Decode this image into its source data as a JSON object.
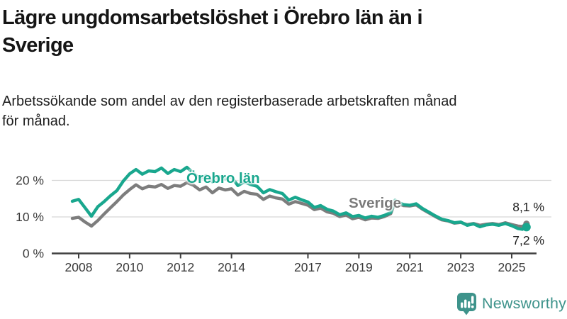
{
  "header": {
    "title": "Lägre ungdomsarbetslöshet i Örebro län än i Sverige",
    "title_lines": [
      "Lägre ungdomsarbetslöshet i Örebro län än i",
      "Sverige"
    ],
    "subtitle": "Arbetssökande som andel av den registerbaserade arbetskraften månad för månad.",
    "subtitle_lines": [
      "Arbetssökande som andel av den registerbaserade arbetskraften månad",
      "för månad."
    ]
  },
  "chart_data": {
    "type": "line",
    "title": "Lägre ungdomsarbetslöshet i Örebro län än i Sverige",
    "xlabel": "",
    "ylabel": "",
    "unit": "%",
    "xlim": [
      2007.7,
      2025.9
    ],
    "ylim": [
      0,
      24
    ],
    "grid": "horizontal",
    "y_ticks": [
      {
        "value": 0,
        "label": "0 %",
        "gridline": false
      },
      {
        "value": 10,
        "label": "10 %",
        "gridline": true
      },
      {
        "value": 20,
        "label": "20 %",
        "gridline": true
      }
    ],
    "x_ticks": [
      {
        "value": 2008,
        "label": "2008"
      },
      {
        "value": 2010,
        "label": "2010"
      },
      {
        "value": 2012,
        "label": "2012"
      },
      {
        "value": 2014,
        "label": "2014"
      },
      {
        "value": 2017,
        "label": "2017"
      },
      {
        "value": 2019,
        "label": "2019"
      },
      {
        "value": 2021,
        "label": "2021"
      },
      {
        "value": 2023,
        "label": "2023"
      },
      {
        "value": 2025,
        "label": "2025"
      }
    ],
    "x": [
      2007.75,
      2008.0,
      2008.25,
      2008.5,
      2008.75,
      2009.0,
      2009.25,
      2009.5,
      2009.75,
      2010.0,
      2010.25,
      2010.5,
      2010.75,
      2011.0,
      2011.25,
      2011.5,
      2011.75,
      2012.0,
      2012.25,
      2012.5,
      2012.75,
      2013.0,
      2013.25,
      2013.5,
      2013.75,
      2014.0,
      2014.25,
      2014.5,
      2014.75,
      2015.0,
      2015.25,
      2015.5,
      2015.75,
      2016.0,
      2016.25,
      2016.5,
      2016.75,
      2017.0,
      2017.25,
      2017.5,
      2017.75,
      2018.0,
      2018.25,
      2018.5,
      2018.75,
      2019.0,
      2019.25,
      2019.5,
      2019.75,
      2020.0,
      2020.25,
      2020.42,
      2020.58,
      2020.75,
      2021.0,
      2021.25,
      2021.5,
      2021.75,
      2022.0,
      2022.25,
      2022.5,
      2022.75,
      2023.0,
      2023.25,
      2023.5,
      2023.75,
      2024.0,
      2024.25,
      2024.5,
      2024.75,
      2025.0,
      2025.25,
      2025.42,
      2025.58
    ],
    "series": [
      {
        "name": "Sverige",
        "color": "#7d7d7d",
        "end_value": 8.1,
        "end_label": "8,1 %",
        "values": [
          9.6,
          9.9,
          8.6,
          7.5,
          9.0,
          10.8,
          12.5,
          14.2,
          16.0,
          17.5,
          18.8,
          17.7,
          18.4,
          18.2,
          18.9,
          17.8,
          18.6,
          18.4,
          19.4,
          18.7,
          17.4,
          18.2,
          16.6,
          17.9,
          17.4,
          17.7,
          16.0,
          17.0,
          16.4,
          16.2,
          14.8,
          15.7,
          15.2,
          14.9,
          13.5,
          14.2,
          13.7,
          13.2,
          12.0,
          12.4,
          11.4,
          11.0,
          10.1,
          10.5,
          9.5,
          9.9,
          9.2,
          9.7,
          9.6,
          10.1,
          10.9,
          14.1,
          13.5,
          13.1,
          13.0,
          13.3,
          12.1,
          11.1,
          10.1,
          9.2,
          8.9,
          8.3,
          8.5,
          7.9,
          8.2,
          7.7,
          8.0,
          8.2,
          7.9,
          8.4,
          7.9,
          7.5,
          7.4,
          8.1
        ]
      },
      {
        "name": "Örebro län",
        "color": "#19a78e",
        "end_value": 7.2,
        "end_label": "7,2 %",
        "values": [
          14.3,
          14.8,
          12.5,
          10.2,
          12.8,
          14.2,
          15.8,
          17.2,
          19.8,
          21.8,
          23.0,
          21.7,
          22.6,
          22.4,
          23.4,
          21.9,
          23.0,
          22.4,
          23.6,
          22.0,
          20.4,
          21.3,
          19.6,
          21.0,
          20.4,
          20.9,
          18.6,
          19.6,
          18.9,
          18.4,
          16.6,
          17.5,
          16.9,
          16.4,
          14.6,
          15.4,
          14.7,
          14.1,
          12.6,
          13.1,
          12.1,
          11.6,
          10.6,
          11.1,
          10.1,
          10.4,
          9.7,
          10.2,
          9.9,
          10.4,
          11.2,
          14.6,
          13.9,
          13.4,
          13.2,
          13.6,
          12.3,
          11.3,
          10.3,
          9.4,
          9.0,
          8.4,
          8.6,
          7.7,
          8.1,
          7.3,
          7.8,
          8.0,
          7.7,
          8.2,
          7.6,
          6.8,
          6.6,
          7.2
        ]
      }
    ]
  },
  "branding": {
    "logo_text": "Newsworthy",
    "logo_color": "#3e938b"
  }
}
